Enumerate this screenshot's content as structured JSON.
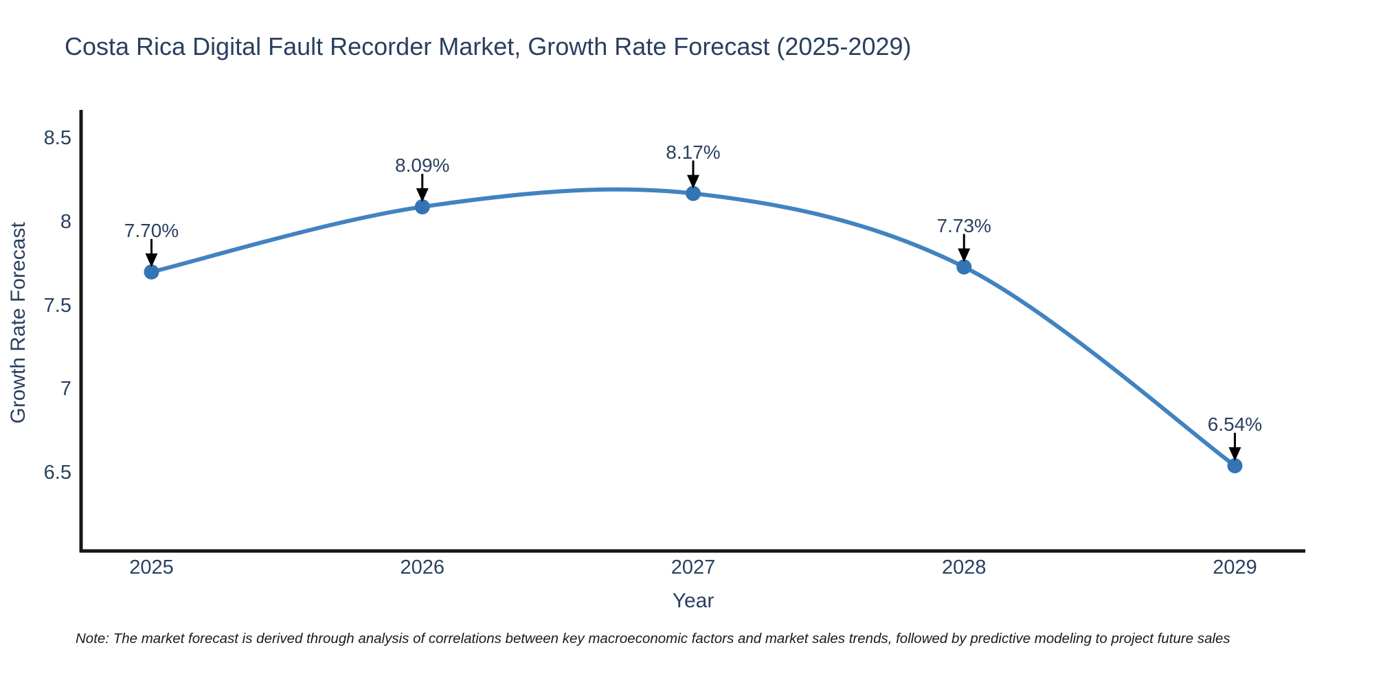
{
  "title": "Costa Rica Digital Fault Recorder Market, Growth Rate Forecast (2025-2029)",
  "note": "Note: The market forecast is derived through analysis of correlations between key macroeconomic factors and market sales trends, followed by predictive modeling to project future sales",
  "chart_data": {
    "type": "line",
    "title": "Costa Rica Digital Fault Recorder Market, Growth Rate Forecast (2025-2029)",
    "x": [
      2025,
      2026,
      2027,
      2028,
      2029
    ],
    "y": [
      7.7,
      8.09,
      8.17,
      7.73,
      6.54
    ],
    "point_labels": [
      "7.70%",
      "8.09%",
      "8.17%",
      "7.73%",
      "6.54%"
    ],
    "xlabel": "Year",
    "ylabel": "Growth Rate Forecast",
    "xtick_values": [
      2025,
      2026,
      2027,
      2028,
      2029
    ],
    "xtick_labels": [
      "2025",
      "2026",
      "2027",
      "2028",
      "2029"
    ],
    "ytick_values": [
      8.5,
      8,
      7.5,
      7,
      6.5
    ],
    "ytick_labels": [
      "8.5",
      "8",
      "7.5",
      "7",
      "6.5"
    ],
    "xlim": [
      2024.74,
      2029.26
    ],
    "ylim": [
      6.03,
      8.67
    ],
    "line_shape": "spline",
    "grid": false,
    "legend": false,
    "colors": {
      "line": "#4183c0",
      "marker": "#3474b4",
      "axis": "#161616",
      "arrow": "#000000",
      "text": "#2a3f5f"
    }
  }
}
